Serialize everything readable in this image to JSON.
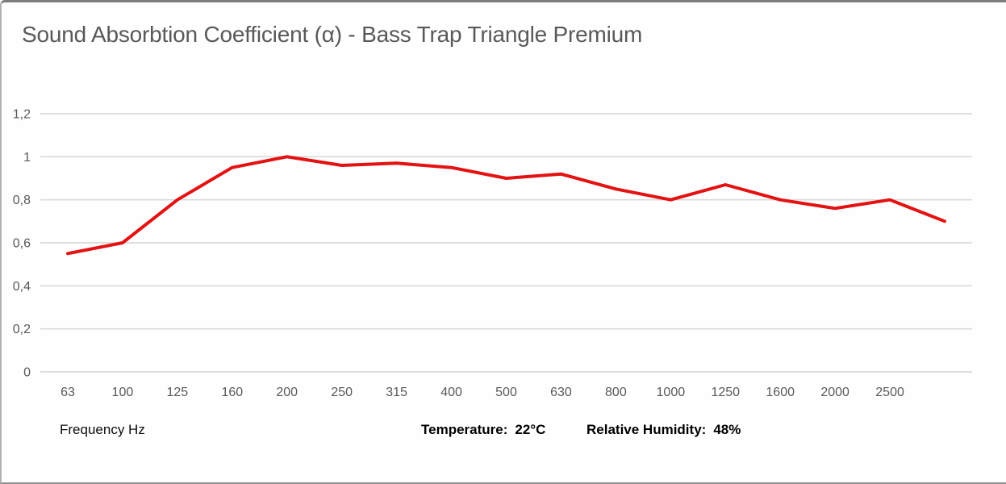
{
  "chart_data": {
    "type": "line",
    "title": "Sound Absorbtion Coefficient (α) - Bass Trap Triangle Premium",
    "xlabel": "Frequency Hz",
    "ylabel": "",
    "categories": [
      "63",
      "100",
      "125",
      "160",
      "200",
      "250",
      "315",
      "400",
      "500",
      "630",
      "800",
      "1000",
      "1250",
      "1600",
      "2000",
      "2500",
      ""
    ],
    "values": [
      0.55,
      0.6,
      0.8,
      0.95,
      1.0,
      0.96,
      0.97,
      0.95,
      0.9,
      0.92,
      0.85,
      0.8,
      0.87,
      0.8,
      0.76,
      0.8,
      0.7
    ],
    "ylim": [
      0,
      1.2
    ],
    "y_ticks": {
      "values": [
        1.2,
        1.0,
        0.8,
        0.6,
        0.4,
        0.2,
        0
      ],
      "labels": [
        "1,2",
        "1",
        "0,8",
        "0,6",
        "0,4",
        "0,2",
        "0"
      ]
    },
    "grid": "horizontal",
    "legend": "none",
    "series_name": "absorption-coefficient"
  },
  "annotations": {
    "temperature_label": "Temperature:",
    "temperature_value": "22°C",
    "humidity_label": "Relative Humidity:",
    "humidity_value": "48%"
  },
  "colors": {
    "line": "#e41212",
    "grid": "#d9d9d9",
    "axis_text": "#595959",
    "title_text": "#595959",
    "annotation_text": "#000000"
  }
}
